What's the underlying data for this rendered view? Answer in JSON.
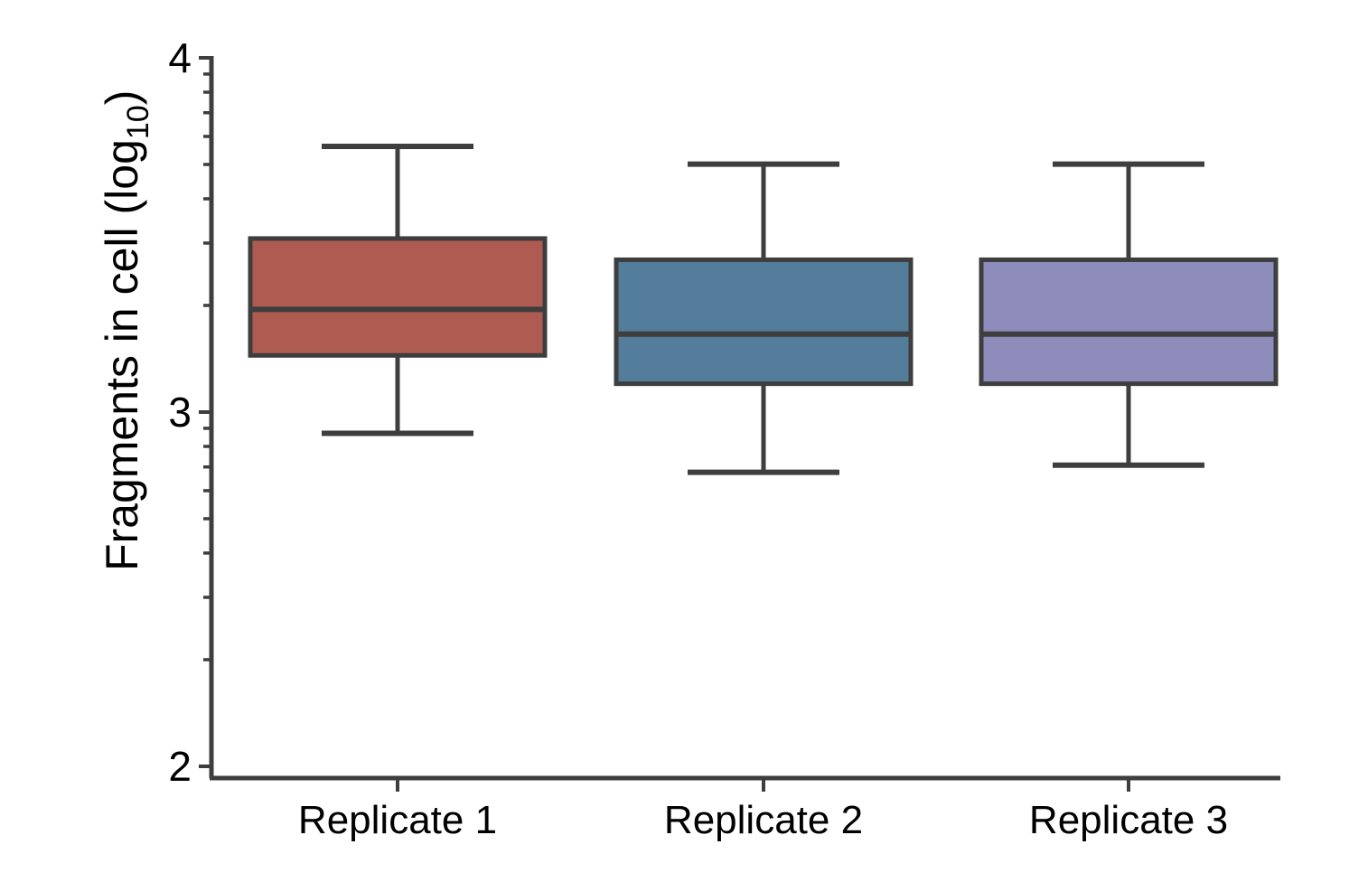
{
  "figure": {
    "background": "#ffffff"
  },
  "chart_data": {
    "type": "boxplot",
    "title": "",
    "xlabel": "",
    "ylabel": {
      "main": "Fragments in cell (log",
      "subscript": "10",
      "suffix": ")"
    },
    "categories": [
      "Replicate 1",
      "Replicate 2",
      "Replicate 3"
    ],
    "y_axis": {
      "min": 2,
      "max": 4,
      "scale": "log10-exponent-labels",
      "major_ticks": [
        {
          "value": 4,
          "label": "4"
        },
        {
          "value": 3,
          "label": "3"
        },
        {
          "value": 2,
          "label": "2"
        }
      ],
      "minor_tick_multiples_per_decade": [
        2,
        3,
        4,
        5,
        6,
        7,
        8,
        9
      ]
    },
    "series": [
      {
        "name": "Replicate 1",
        "color": "#AE5B52",
        "stats": {
          "whisker_low": 2.94,
          "q1": 3.16,
          "median": 3.29,
          "q3": 3.49,
          "whisker_high": 3.75
        }
      },
      {
        "name": "Replicate 2",
        "color": "#547C9B",
        "stats": {
          "whisker_low": 2.83,
          "q1": 3.08,
          "median": 3.22,
          "q3": 3.43,
          "whisker_high": 3.7
        }
      },
      {
        "name": "Replicate 3",
        "color": "#8D8CBB",
        "stats": {
          "whisker_low": 2.85,
          "q1": 3.08,
          "median": 3.22,
          "q3": 3.43,
          "whisker_high": 3.7
        }
      }
    ],
    "stroke_color": "#3E3E3E",
    "text_color": "#000000",
    "grid": false,
    "legend_position": "none",
    "outliers": []
  }
}
